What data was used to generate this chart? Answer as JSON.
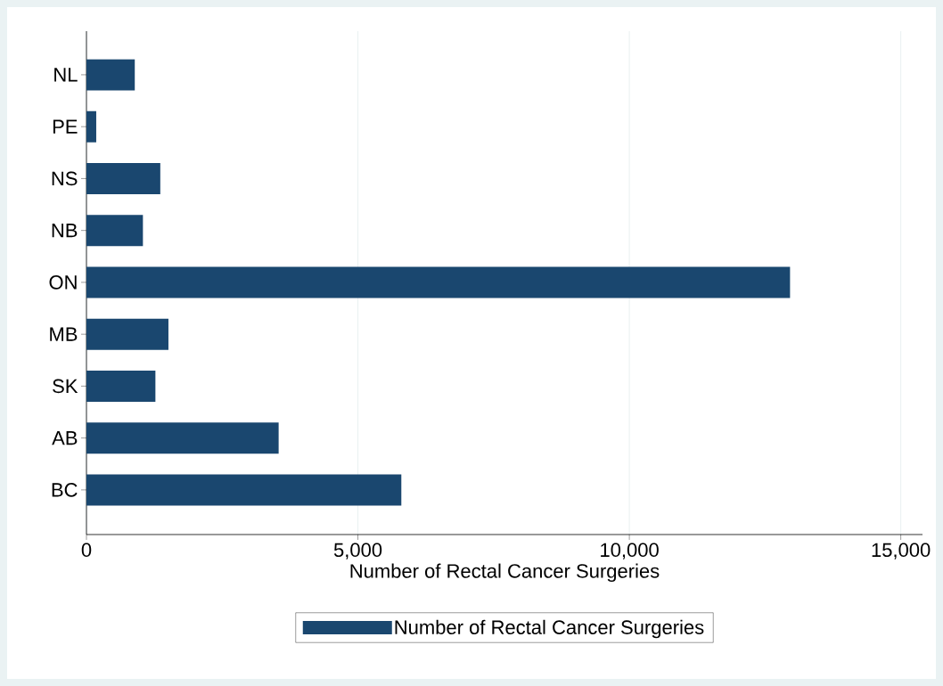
{
  "chart_data": {
    "type": "bar",
    "orientation": "horizontal",
    "categories": [
      "NL",
      "PE",
      "NS",
      "NB",
      "ON",
      "MB",
      "SK",
      "AB",
      "BC"
    ],
    "series": [
      {
        "name": "Number of Rectal Cancer Surgeries",
        "color": "#1a476f",
        "values": [
          890,
          180,
          1360,
          1040,
          12960,
          1510,
          1270,
          3540,
          5800
        ]
      }
    ],
    "xlabel": "Number of Rectal Cancer Surgeries",
    "xlim": [
      0,
      15400
    ],
    "xticks": [
      0,
      {
        "value": 5000,
        "label": "5,000"
      },
      {
        "value": 10000,
        "label": "10,000"
      },
      {
        "value": 15000,
        "label": "15,000"
      }
    ],
    "grid": "x",
    "legend": "bottom"
  }
}
